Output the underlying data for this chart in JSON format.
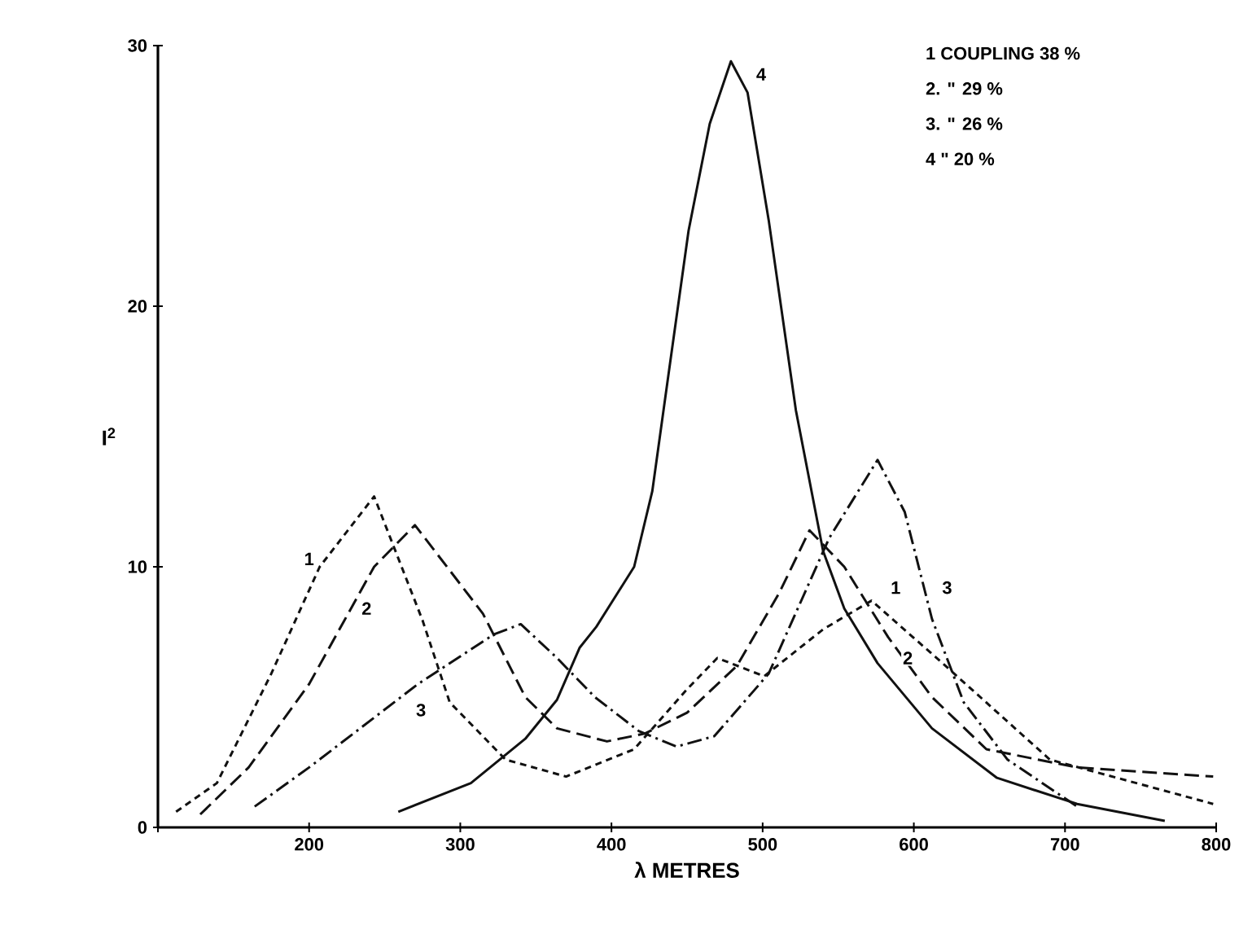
{
  "chart_data": {
    "type": "line",
    "xlabel": "λ METRES",
    "ylabel": "I$^{2}$",
    "xlim": [
      100,
      800
    ],
    "ylim": [
      0,
      30
    ],
    "xticks": [
      {
        "value": 100,
        "label": null
      },
      200,
      300,
      400,
      500,
      600,
      700,
      800
    ],
    "yticks": [
      0,
      10,
      20,
      30
    ],
    "marker": "none",
    "series": [
      {
        "color": "#111111",
        "line_style": "dashed",
        "x": [
          112,
          139,
          175,
          207,
          243,
          275,
          293,
          330,
          370,
          415,
          450,
          470,
          501,
          540,
          572,
          619,
          690,
          798
        ],
        "values": [
          0.6,
          1.7,
          5.9,
          10.0,
          12.7,
          7.95,
          4.8,
          2.6,
          1.95,
          3.0,
          5.3,
          6.5,
          5.8,
          7.6,
          8.7,
          6.3,
          2.6,
          0.9
        ]
      },
      {
        "color": "#111111",
        "line_style": "longdashed",
        "x": [
          128,
          160,
          200,
          243,
          270,
          315,
          343,
          364,
          397,
          422,
          450,
          483,
          511,
          531,
          554,
          583,
          612,
          648,
          708,
          798
        ],
        "values": [
          0.5,
          2.3,
          5.5,
          10.0,
          11.6,
          8.2,
          5.0,
          3.8,
          3.3,
          3.6,
          4.4,
          6.2,
          9.0,
          11.4,
          10.0,
          7.3,
          5.0,
          3.0,
          2.3,
          1.95
        ]
      },
      {
        "color": "#111111",
        "line_style": "dashdotted",
        "x": [
          164,
          200,
          272,
          322,
          340,
          364,
          389,
          418,
          443,
          468,
          504,
          544,
          576,
          594,
          612,
          633,
          662,
          708
        ],
        "values": [
          0.8,
          2.3,
          5.5,
          7.4,
          7.8,
          6.5,
          5.0,
          3.7,
          3.1,
          3.5,
          5.9,
          11.1,
          14.1,
          12.1,
          8.0,
          4.8,
          2.6,
          0.8
        ]
      },
      {
        "color": "#111111",
        "line_style": "solid",
        "x": [
          259,
          307,
          343,
          364,
          379,
          390,
          415,
          427,
          438,
          451,
          465,
          479,
          490,
          504,
          522,
          540,
          554,
          576,
          612,
          655,
          708,
          766
        ],
        "values": [
          0.6,
          1.7,
          3.4,
          4.9,
          6.9,
          7.7,
          10.0,
          12.9,
          17.5,
          22.9,
          27.0,
          29.4,
          28.2,
          23.3,
          16.0,
          10.6,
          8.4,
          6.3,
          3.8,
          1.9,
          0.9,
          0.25
        ]
      }
    ],
    "annotations": [
      "1 COUPLING 38 %",
      "2. \" 29 %",
      "3. \" 26 %",
      "4 \" 20 %",
      {
        "text": "1",
        "x": 200,
        "y": 10.3
      },
      {
        "text": "2",
        "x": 238,
        "y": 8.4
      },
      {
        "text": "3",
        "x": 274,
        "y": 4.5
      },
      {
        "text": "4",
        "x": 499,
        "y": 28.9
      },
      {
        "text": "1",
        "x": 588,
        "y": 9.2
      },
      {
        "text": "3",
        "x": 622,
        "y": 9.2
      },
      {
        "text": "2",
        "x": 596,
        "y": 6.5
      }
    ]
  }
}
